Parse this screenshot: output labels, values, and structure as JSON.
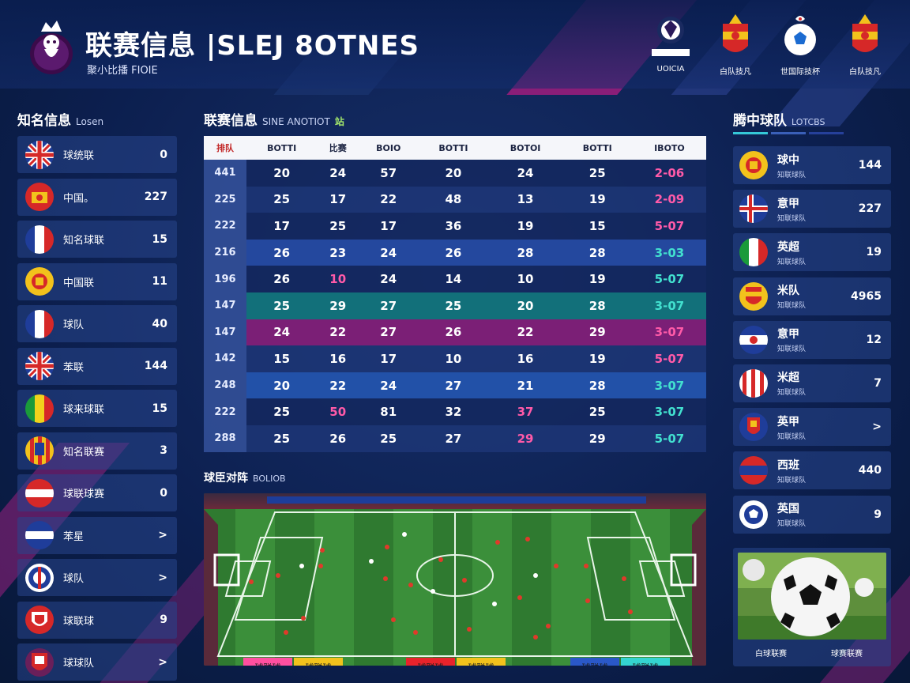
{
  "header": {
    "title": "联赛信息 |SLEJ 8OTNES",
    "subtitle": "聚小比播 FIOIE",
    "crests": [
      {
        "label": "UOICIA",
        "sub": "",
        "icon": "league-crest-icon"
      },
      {
        "label": "白队技凡",
        "icon": "spain-crest-icon"
      },
      {
        "label": "世国际技杯",
        "icon": "ball-crest-icon"
      },
      {
        "label": "白队技凡",
        "icon": "spain-crest-icon"
      }
    ]
  },
  "left": {
    "title": "知名信息",
    "subtitle": "Losen",
    "items": [
      {
        "name": "球统联",
        "value": "0",
        "flag": "uk"
      },
      {
        "name": "中国。",
        "value": "227",
        "flag": "red-crest"
      },
      {
        "name": "知名球联",
        "value": "15",
        "flag": "france"
      },
      {
        "name": "中国联",
        "value": "11",
        "flag": "spain"
      },
      {
        "name": "球队",
        "value": "40",
        "flag": "france"
      },
      {
        "name": "苯联",
        "value": "144",
        "flag": "uk"
      },
      {
        "name": "球来球联",
        "value": "15",
        "flag": "senegal"
      },
      {
        "name": "知名联赛",
        "value": "3",
        "flag": "crest-stripe"
      },
      {
        "name": "球联球赛",
        "value": "0",
        "flag": "red-white"
      },
      {
        "name": "苯星",
        "value": ">",
        "flag": "blue-white"
      },
      {
        "name": "球队",
        "value": ">",
        "flag": "blue-crest"
      },
      {
        "name": "球联球",
        "value": "9",
        "flag": "shield"
      },
      {
        "name": "球球队",
        "value": ">",
        "flag": "shield-2"
      }
    ]
  },
  "table": {
    "title": "联赛信息",
    "subtitle": "SINE ANOTIOT",
    "tag": "站",
    "headers": [
      "排队",
      "BOTTI",
      "比赛",
      "BOIO",
      "BOTTI",
      "BOTOI",
      "BOTTI",
      "IBOTO"
    ],
    "rows": [
      {
        "cells": [
          "441",
          "20",
          "24",
          "57",
          "20",
          "24",
          "25",
          "2-06"
        ],
        "style": "r-even",
        "last": "pink"
      },
      {
        "cells": [
          "225",
          "25",
          "17",
          "22",
          "48",
          "13",
          "19",
          "2-09"
        ],
        "style": "r-odd",
        "last": "pink"
      },
      {
        "cells": [
          "222",
          "17",
          "25",
          "17",
          "36",
          "19",
          "15",
          "5-07"
        ],
        "style": "r-even",
        "last": "pink"
      },
      {
        "cells": [
          "216",
          "26",
          "23",
          "24",
          "26",
          "28",
          "28",
          "3-03"
        ],
        "style": "hl-blue",
        "last": "teal"
      },
      {
        "cells": [
          "196",
          "26",
          "10",
          "24",
          "14",
          "10",
          "19",
          "5-07"
        ],
        "style": "r-even",
        "last": "teal",
        "pink": [
          2
        ]
      },
      {
        "cells": [
          "147",
          "25",
          "29",
          "27",
          "25",
          "20",
          "28",
          "3-07"
        ],
        "style": "hl-teal",
        "last": "teal"
      },
      {
        "cells": [
          "147",
          "24",
          "22",
          "27",
          "26",
          "22",
          "29",
          "3-07"
        ],
        "style": "hl-magenta",
        "last": "pink"
      },
      {
        "cells": [
          "142",
          "15",
          "16",
          "17",
          "10",
          "16",
          "19",
          "5-07"
        ],
        "style": "r-odd",
        "last": "pink"
      },
      {
        "cells": [
          "248",
          "20",
          "22",
          "24",
          "27",
          "21",
          "28",
          "3-07"
        ],
        "style": "hl-blue2",
        "last": "teal"
      },
      {
        "cells": [
          "222",
          "25",
          "50",
          "81",
          "32",
          "37",
          "25",
          "3-07"
        ],
        "style": "r-even",
        "last": "teal",
        "pink": [
          2,
          5
        ]
      },
      {
        "cells": [
          "288",
          "25",
          "26",
          "25",
          "27",
          "29",
          "29",
          "5-07"
        ],
        "style": "r-odd",
        "last": "teal",
        "pink": [
          5
        ]
      }
    ]
  },
  "field": {
    "title": "球臣对阵",
    "subtitle": "BOLIOB",
    "tags": [
      {
        "label": "球联球",
        "color": "#ff4fa0"
      },
      {
        "label": "球联球",
        "color": "#f2c21c"
      },
      {
        "label": "球联球",
        "color": "#e8232b"
      },
      {
        "label": "球联球",
        "color": "#f2c21c"
      },
      {
        "label": "球联球",
        "color": "#2a58c8"
      },
      {
        "label": "球联球",
        "color": "#34d4d0"
      }
    ]
  },
  "right": {
    "title": "腾中球队",
    "subtitle": "LOTCBS",
    "items": [
      {
        "name": "球中",
        "sub": "知联球队",
        "value": "144",
        "flag": "spain-circle"
      },
      {
        "name": "意甲",
        "sub": "知联球队",
        "value": "227",
        "flag": "iceland"
      },
      {
        "name": "英超",
        "sub": "知联球队",
        "value": "19",
        "flag": "italy"
      },
      {
        "name": "米队",
        "sub": "知联球队",
        "value": "4965",
        "flag": "spain-crest"
      },
      {
        "name": "意甲",
        "sub": "知联球队",
        "value": "12",
        "flag": "blue-white-red"
      },
      {
        "name": "米超",
        "sub": "知联球队",
        "value": "7",
        "flag": "stripes"
      },
      {
        "name": "英甲",
        "sub": "知联球队",
        "value": ">",
        "flag": "crest-small"
      },
      {
        "name": "西班",
        "sub": "知联球队",
        "value": "440",
        "flag": "red-blue"
      },
      {
        "name": "英国",
        "sub": "知联球队",
        "value": "9",
        "flag": "ball-crest"
      }
    ],
    "ball_captions": [
      "白球联赛",
      "球赛联赛"
    ]
  }
}
